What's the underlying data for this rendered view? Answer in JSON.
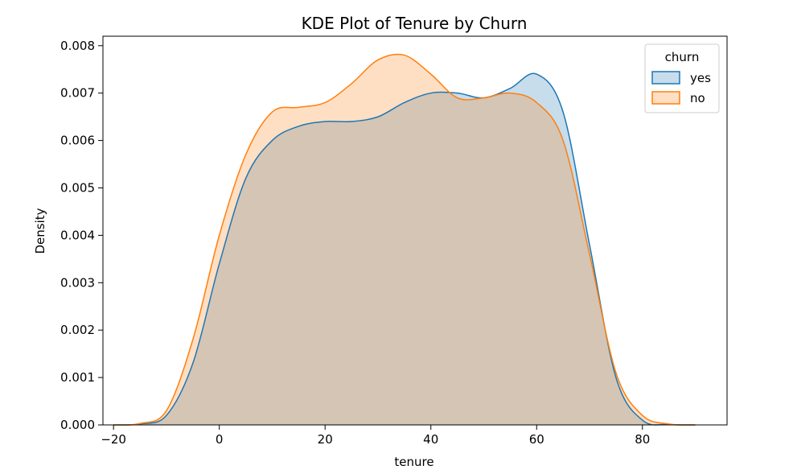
{
  "chart_data": {
    "type": "area",
    "title": "KDE Plot of Tenure by Churn",
    "xlabel": "tenure",
    "ylabel": "Density",
    "xlim": [
      -22,
      96
    ],
    "ylim": [
      0,
      0.0082
    ],
    "xticks": [
      -20,
      0,
      20,
      40,
      60,
      80
    ],
    "xtick_labels": [
      "−20",
      "0",
      "20",
      "40",
      "60",
      "80"
    ],
    "yticks": [
      0,
      0.001,
      0.002,
      0.003,
      0.004,
      0.005,
      0.006,
      0.007,
      0.008
    ],
    "ytick_labels": [
      "0.000",
      "0.001",
      "0.002",
      "0.003",
      "0.004",
      "0.005",
      "0.006",
      "0.007",
      "0.008"
    ],
    "grid": false,
    "legend": {
      "title": "churn",
      "position": "top-right"
    },
    "series": [
      {
        "name": "yes",
        "color": "#1f77b4",
        "x": [
          -20,
          -15,
          -10,
          -5,
          0,
          5,
          10,
          15,
          20,
          25,
          30,
          35,
          40,
          45,
          50,
          55,
          60,
          65,
          70,
          75,
          80,
          85,
          90
        ],
        "y": [
          0,
          2e-05,
          0.0002,
          0.0013,
          0.0034,
          0.0052,
          0.006,
          0.0063,
          0.0064,
          0.0064,
          0.0065,
          0.0068,
          0.007,
          0.007,
          0.0069,
          0.0071,
          0.0074,
          0.0066,
          0.0038,
          0.001,
          0.0001,
          1e-05,
          0
        ]
      },
      {
        "name": "no",
        "color": "#ff7f0e",
        "x": [
          -20,
          -15,
          -10,
          -5,
          0,
          5,
          10,
          15,
          20,
          25,
          30,
          35,
          40,
          45,
          50,
          55,
          60,
          65,
          70,
          75,
          80,
          85,
          90
        ],
        "y": [
          0,
          3e-05,
          0.0003,
          0.0018,
          0.004,
          0.0057,
          0.0066,
          0.0067,
          0.0068,
          0.0072,
          0.0077,
          0.0078,
          0.0074,
          0.0069,
          0.0069,
          0.007,
          0.0068,
          0.006,
          0.0036,
          0.0011,
          0.0002,
          2e-05,
          0
        ]
      }
    ]
  }
}
